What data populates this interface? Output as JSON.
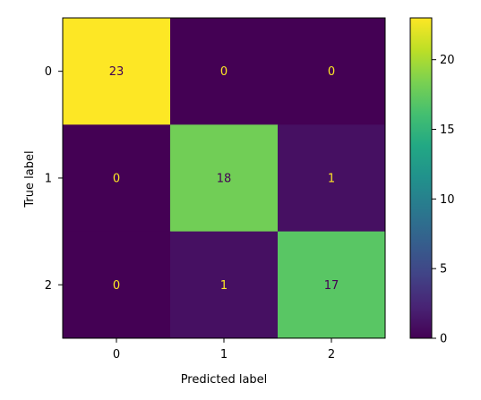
{
  "chart_data": {
    "type": "heatmap",
    "title": "",
    "xlabel": "Predicted label",
    "ylabel": "True label",
    "x_categories": [
      "0",
      "1",
      "2"
    ],
    "y_categories": [
      "0",
      "1",
      "2"
    ],
    "values": [
      [
        23,
        0,
        0
      ],
      [
        0,
        18,
        1
      ],
      [
        0,
        1,
        17
      ]
    ],
    "colormap": "viridis",
    "colorbar": {
      "range": [
        0,
        23
      ],
      "ticks": [
        0,
        5,
        10,
        15,
        20
      ]
    },
    "grid": false,
    "text_colors": {
      "on_dark": "#fde725",
      "on_light": "#440154"
    }
  }
}
